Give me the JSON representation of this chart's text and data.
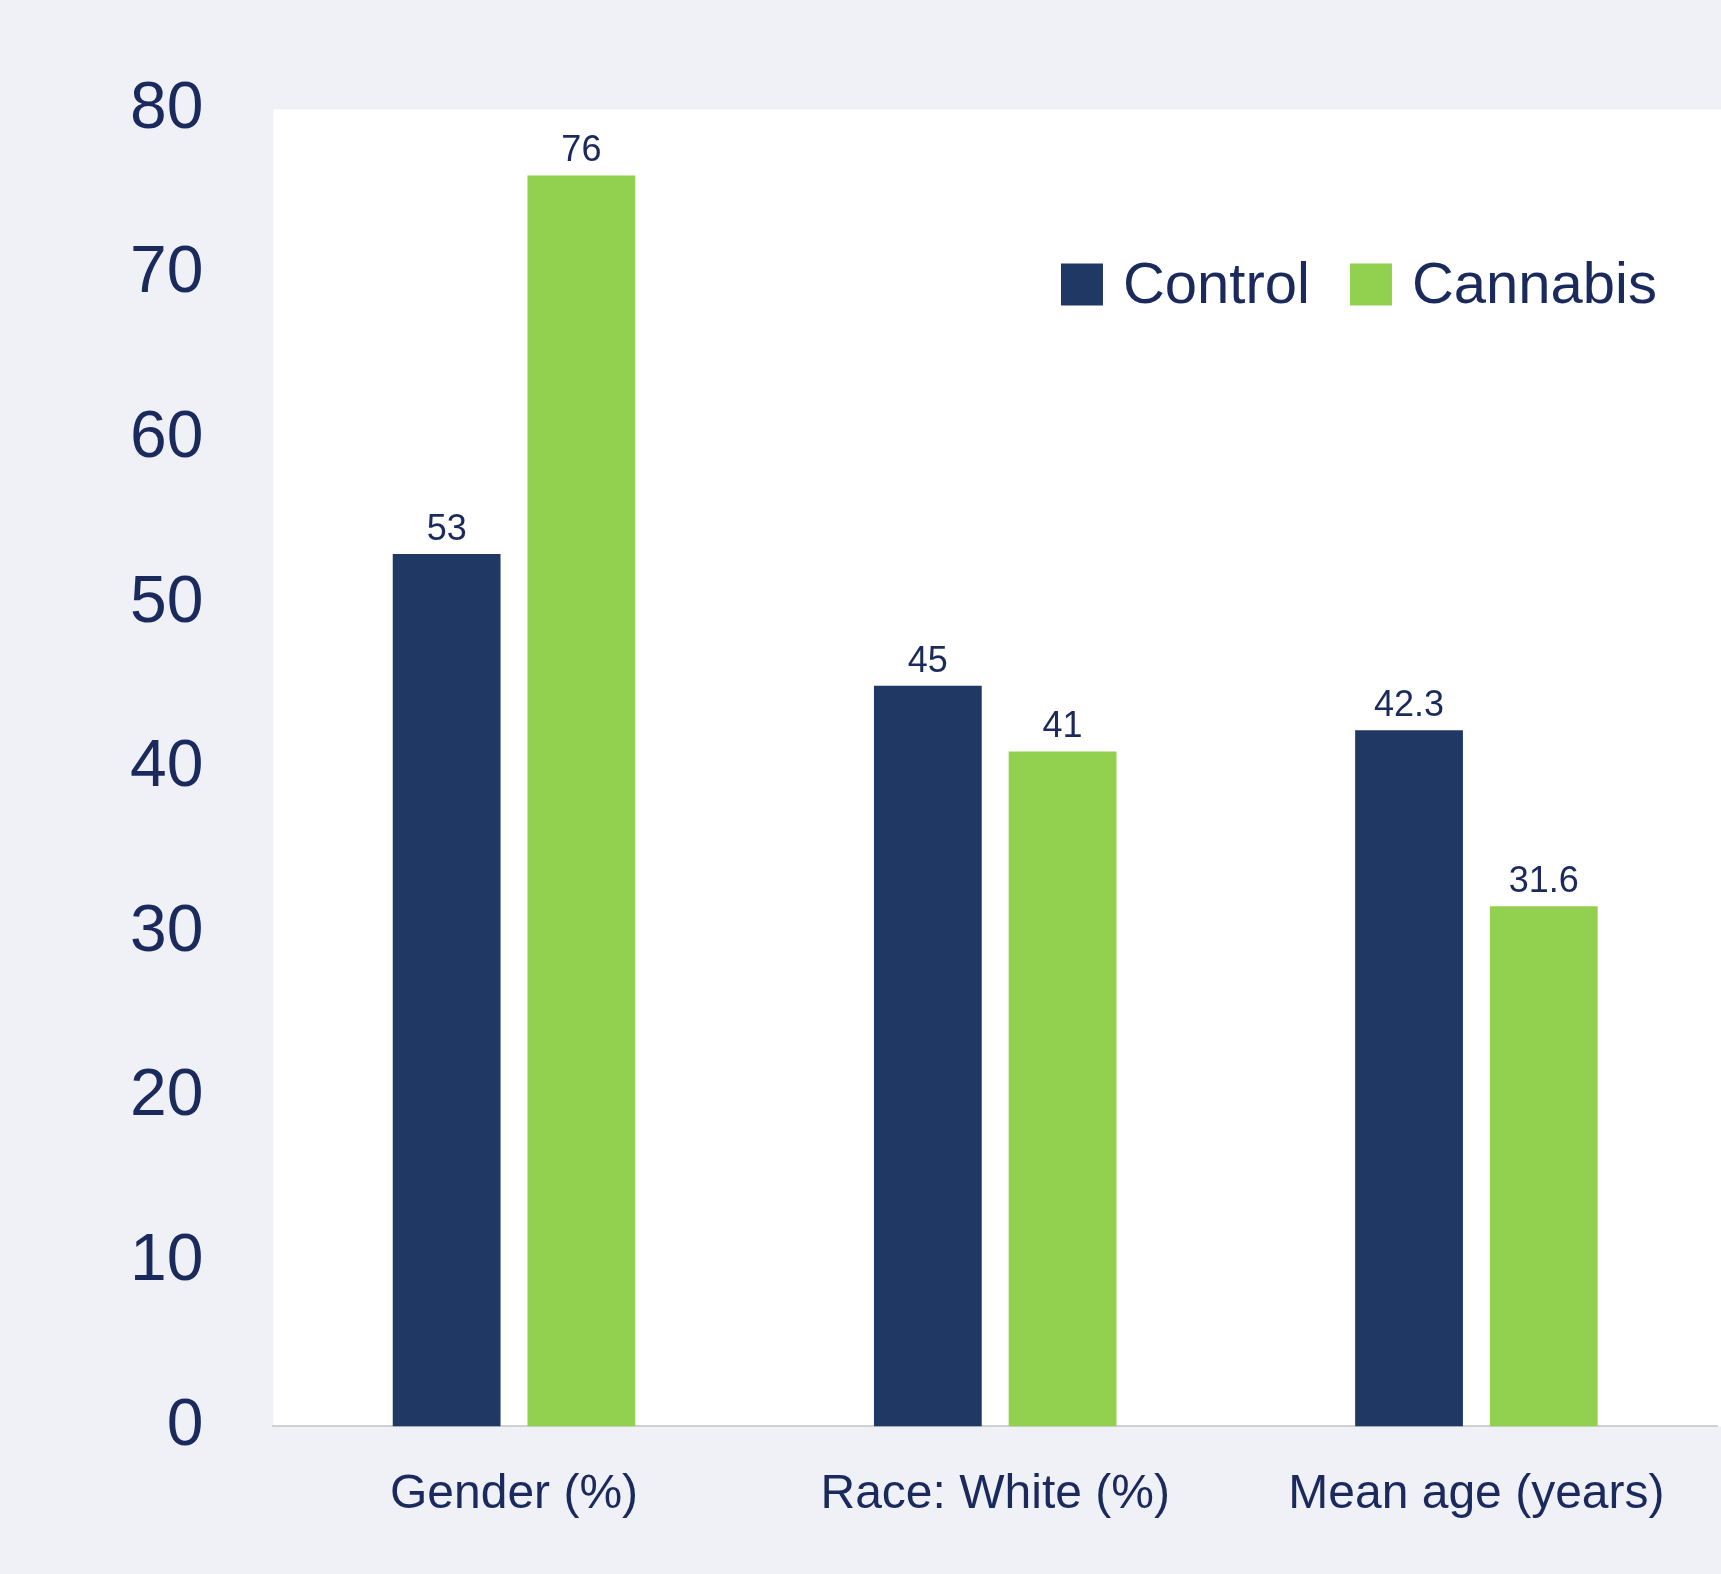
{
  "chart_data": {
    "type": "bar",
    "categories": [
      "Gender (%)",
      "Race: White (%)",
      "Mean age (years)"
    ],
    "series": [
      {
        "name": "Control",
        "color": "#203864",
        "values": [
          53,
          45,
          42.3
        ]
      },
      {
        "name": "Cannabis",
        "color": "#92d050",
        "values": [
          76,
          41,
          31.6
        ]
      }
    ],
    "ylim": [
      0,
      80
    ],
    "yticks": [
      0,
      10,
      20,
      30,
      40,
      50,
      60,
      70,
      80
    ],
    "grid": false,
    "legend": "top right",
    "data_labels": true
  }
}
